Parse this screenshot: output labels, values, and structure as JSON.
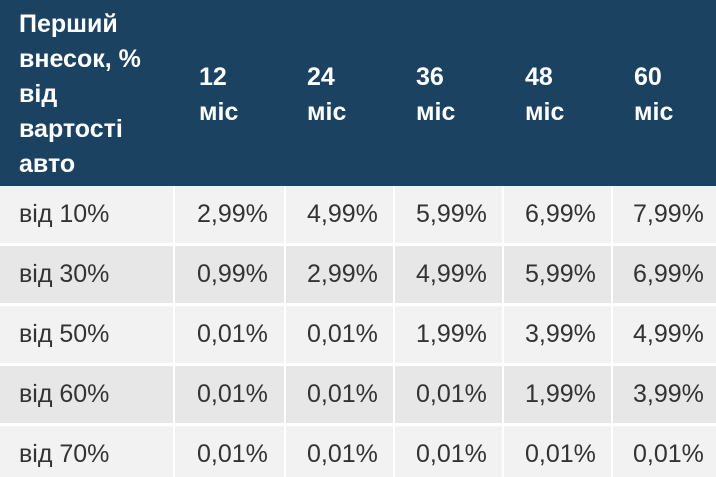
{
  "header": {
    "first": "Перший\nвнесок, %\nвід\nвартості\nавто",
    "cols": [
      "12\nміс",
      "24\nміс",
      "36\nміс",
      "48\nміс",
      "60\nміс"
    ]
  },
  "rows": [
    {
      "label": "від 10%",
      "values": [
        "2,99%",
        "4,99%",
        "5,99%",
        "6,99%",
        "7,99%"
      ]
    },
    {
      "label": "від 30%",
      "values": [
        "0,99%",
        "2,99%",
        "4,99%",
        "5,99%",
        "6,99%"
      ]
    },
    {
      "label": "від 50%",
      "values": [
        "0,01%",
        "0,01%",
        "1,99%",
        "3,99%",
        "4,99%"
      ]
    },
    {
      "label": "від 60%",
      "values": [
        "0,01%",
        "0,01%",
        "0,01%",
        "1,99%",
        "3,99%"
      ]
    },
    {
      "label": "від 70%",
      "values": [
        "0,01%",
        "0,01%",
        "0,01%",
        "0,01%",
        "0,01%"
      ]
    }
  ]
}
